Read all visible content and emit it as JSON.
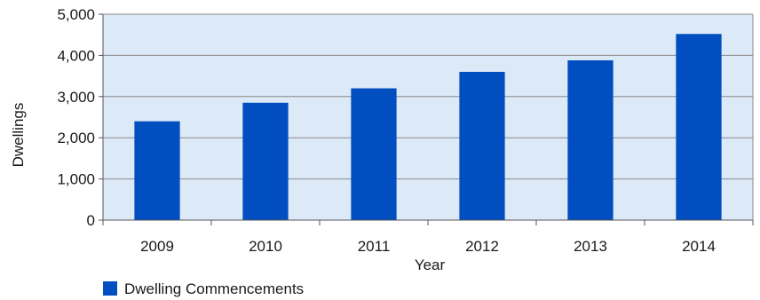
{
  "chart_data": {
    "type": "bar",
    "title": "",
    "xlabel": "Year",
    "ylabel": "Dwellings",
    "categories": [
      "2009",
      "2010",
      "2011",
      "2012",
      "2013",
      "2014"
    ],
    "series": [
      {
        "name": "Dwelling Commencements",
        "values": [
          2400,
          2850,
          3200,
          3600,
          3880,
          4520
        ]
      }
    ],
    "ylim": [
      0,
      5000
    ],
    "yticks": [
      0,
      1000,
      2000,
      3000,
      4000,
      5000
    ],
    "ytick_labels": [
      "0",
      "1,000",
      "2,000",
      "3,000",
      "4,000",
      "5,000"
    ],
    "grid": true,
    "legend_position": "bottom-left",
    "colors": {
      "bar": "#004ebf",
      "plot_background": "#dce9f7",
      "gridline": "#8a8a8a",
      "axis": "#555555"
    }
  }
}
